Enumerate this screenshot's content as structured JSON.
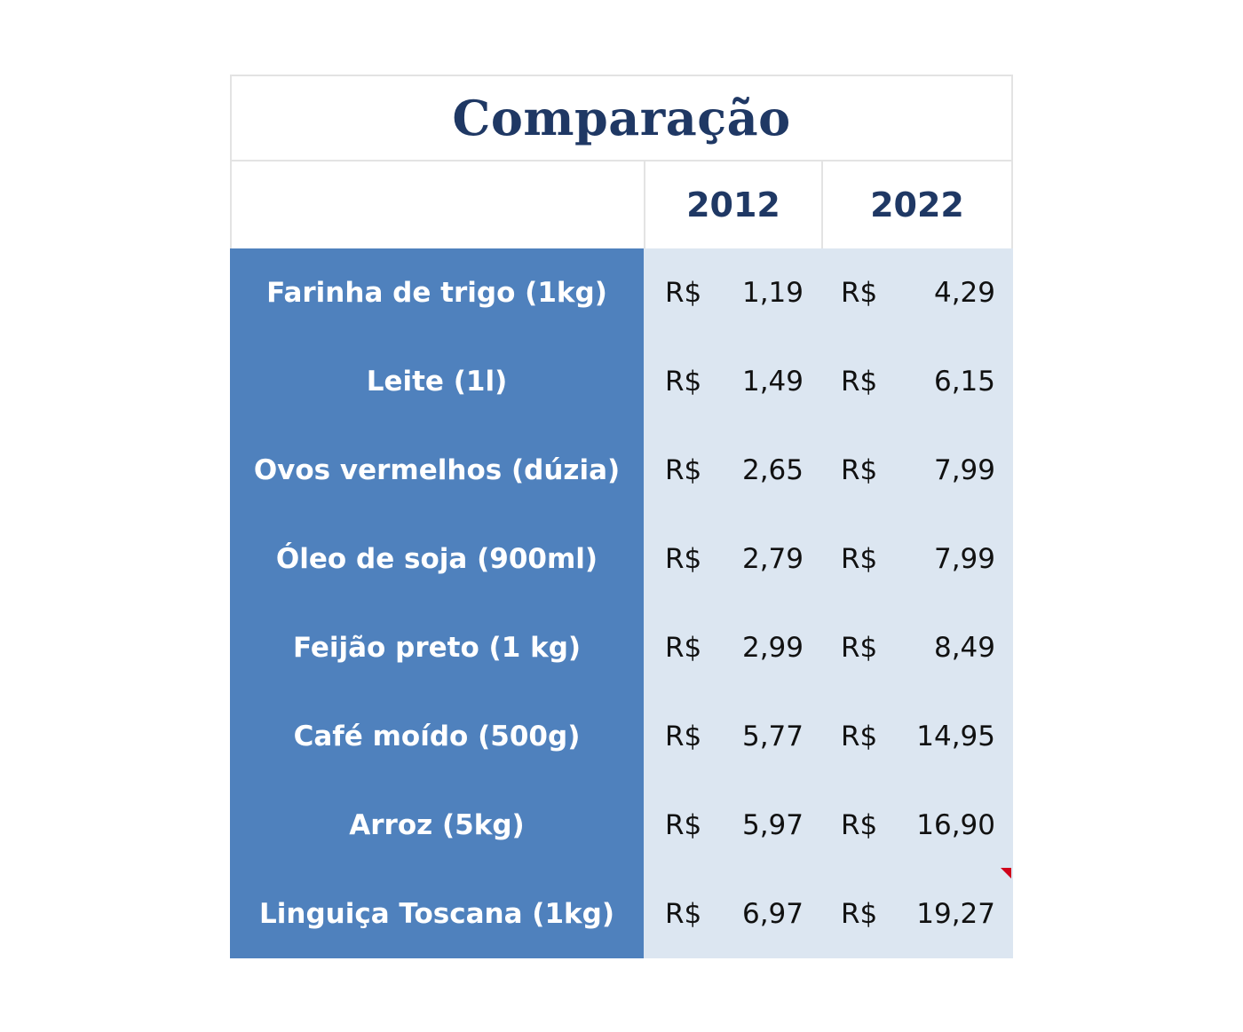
{
  "title": "Comparação",
  "headers": {
    "year1": "2012",
    "year2": "2022"
  },
  "currency": "R$",
  "accent_colors": {
    "title_text": "#1f3864",
    "label_column": "#4f81bd",
    "value_column": "#dce6f1",
    "comment_marker": "#d0021b"
  },
  "rows": [
    {
      "item": "Farinha de trigo (1kg)",
      "price_2012": "1,19",
      "price_2022": "4,29"
    },
    {
      "item": "Leite (1l)",
      "price_2012": "1,49",
      "price_2022": "6,15"
    },
    {
      "item": "Ovos vermelhos (dúzia)",
      "price_2012": "2,65",
      "price_2022": "7,99"
    },
    {
      "item": "Óleo de soja (900ml)",
      "price_2012": "2,79",
      "price_2022": "7,99"
    },
    {
      "item": "Feijão preto (1 kg)",
      "price_2012": "2,99",
      "price_2022": "8,49"
    },
    {
      "item": "Café moído (500g)",
      "price_2012": "5,77",
      "price_2022": "14,95"
    },
    {
      "item": "Arroz (5kg)",
      "price_2012": "5,97",
      "price_2022": "16,90"
    },
    {
      "item": "Linguiça Toscana (1kg)",
      "price_2012": "6,97",
      "price_2022": "19,27"
    }
  ]
}
